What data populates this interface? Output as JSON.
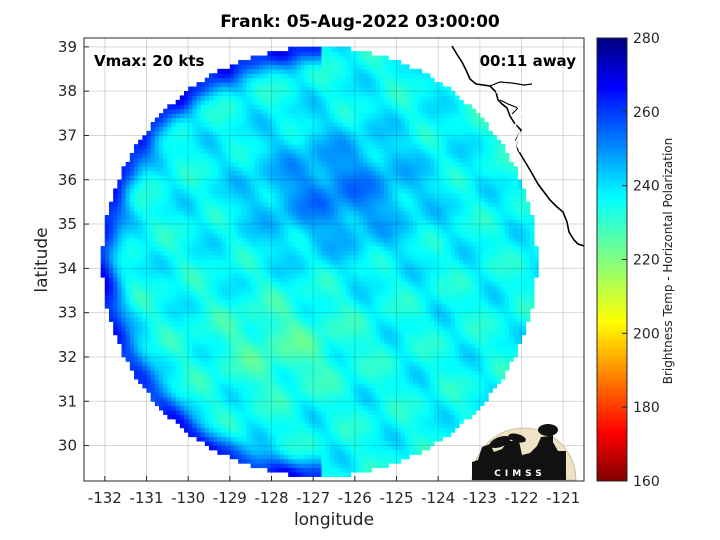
{
  "chart_data": {
    "type": "heatmap",
    "title": "Frank: 05-Aug-2022 03:00:00",
    "xlabel": "longitude",
    "ylabel": "latitude",
    "xlim": [
      -132.5,
      -120.5
    ],
    "ylim": [
      29.2,
      39.2
    ],
    "xticks": [
      -132,
      -131,
      -130,
      -129,
      -128,
      -127,
      -126,
      -125,
      -124,
      -123,
      -122,
      -121
    ],
    "yticks": [
      30,
      31,
      32,
      33,
      34,
      35,
      36,
      37,
      38,
      39
    ],
    "grid": true,
    "annotations": {
      "intensity": "Vmax: 20 kts",
      "time_offset": "00:11 away"
    },
    "colorbar": {
      "label": "Brightness Temp - Horizontal Polarization",
      "range": [
        160,
        280
      ],
      "ticks": [
        160,
        180,
        200,
        220,
        240,
        260,
        280
      ],
      "colormap": "jet"
    },
    "swath": {
      "center": [
        -126.9,
        34.1
      ],
      "radius_deg_lat": 4.85,
      "east_cutoff_lon": -121.5
    },
    "field_summary": {
      "background_temp": 236,
      "cold_core_center": [
        -126.5,
        35.7
      ],
      "cold_core_temp": 252,
      "warm_region_center": [
        -127.8,
        32.2
      ],
      "warm_region_temp": 228,
      "west_edge_temp": 262,
      "coastal_strip_temp": 268
    },
    "logo_text": "CIMSS"
  }
}
